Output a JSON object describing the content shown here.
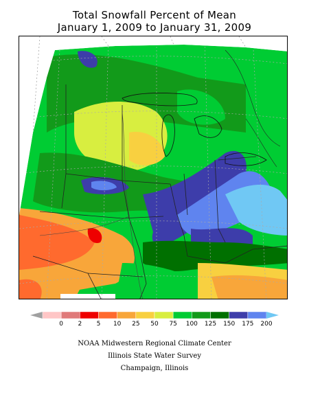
{
  "title": {
    "line1": "Total Snowfall Percent of Mean",
    "line2": "January 1, 2009 to January 31, 2009"
  },
  "legend": {
    "colors": [
      "#a0a0a0",
      "#ffc6c6",
      "#e07a7a",
      "#ee0000",
      "#ff6a2e",
      "#f8a63a",
      "#f8d040",
      "#d8ee40",
      "#00cc33",
      "#129a1a",
      "#007000",
      "#3d3daa",
      "#5f84ef",
      "#70c8f4"
    ],
    "ticks": [
      "0",
      "2",
      "5",
      "10",
      "25",
      "50",
      "75",
      "100",
      "125",
      "150",
      "175",
      "200"
    ]
  },
  "credits": {
    "line1": "NOAA Midwestern Regional Climate Center",
    "line2": "Illinois State Water Survey",
    "line3": "Champaign, Illinois"
  }
}
